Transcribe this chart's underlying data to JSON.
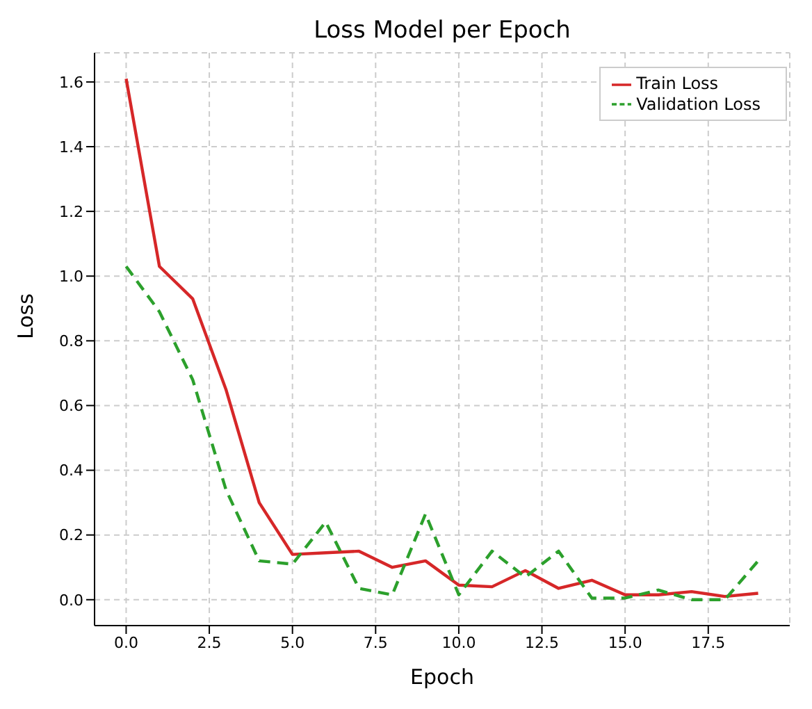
{
  "chart_data": {
    "type": "line",
    "title": "Loss Model per Epoch",
    "xlabel": "Epoch",
    "ylabel": "Loss",
    "x": [
      0,
      1,
      2,
      3,
      4,
      5,
      6,
      7,
      8,
      9,
      10,
      11,
      12,
      13,
      14,
      15,
      16,
      17,
      18,
      19
    ],
    "series": [
      {
        "name": "Train Loss",
        "color": "#d62728",
        "line_style": "solid",
        "values": [
          1.61,
          1.03,
          0.93,
          0.65,
          0.3,
          0.14,
          0.145,
          0.15,
          0.1,
          0.12,
          0.045,
          0.04,
          0.09,
          0.035,
          0.06,
          0.015,
          0.015,
          0.025,
          0.01,
          0.02
        ]
      },
      {
        "name": "Validation Loss",
        "color": "#2ca02c",
        "line_style": "dashed",
        "values": [
          1.03,
          0.89,
          0.68,
          0.34,
          0.12,
          0.11,
          0.24,
          0.035,
          0.015,
          0.265,
          0.015,
          0.15,
          0.07,
          0.15,
          0.005,
          0.005,
          0.03,
          0.0,
          0.0,
          0.12
        ]
      }
    ],
    "xlim": [
      -0.95,
      19.95
    ],
    "xticks": [
      {
        "value": 0,
        "label": "0.0"
      },
      2.5,
      {
        "value": 5,
        "label": "5.0"
      },
      7.5,
      {
        "value": 10,
        "label": "10.0"
      },
      12.5,
      {
        "value": 15,
        "label": "15.0"
      },
      17.5
    ],
    "ylim": [
      -0.08,
      1.69
    ],
    "yticks": [
      {
        "value": 0,
        "label": "0.0"
      },
      0.2,
      0.4,
      0.6,
      0.8,
      {
        "value": 1,
        "label": "1.0"
      },
      1.2,
      1.4,
      1.6
    ],
    "grid": true,
    "legend": "top right",
    "marker": "none"
  }
}
